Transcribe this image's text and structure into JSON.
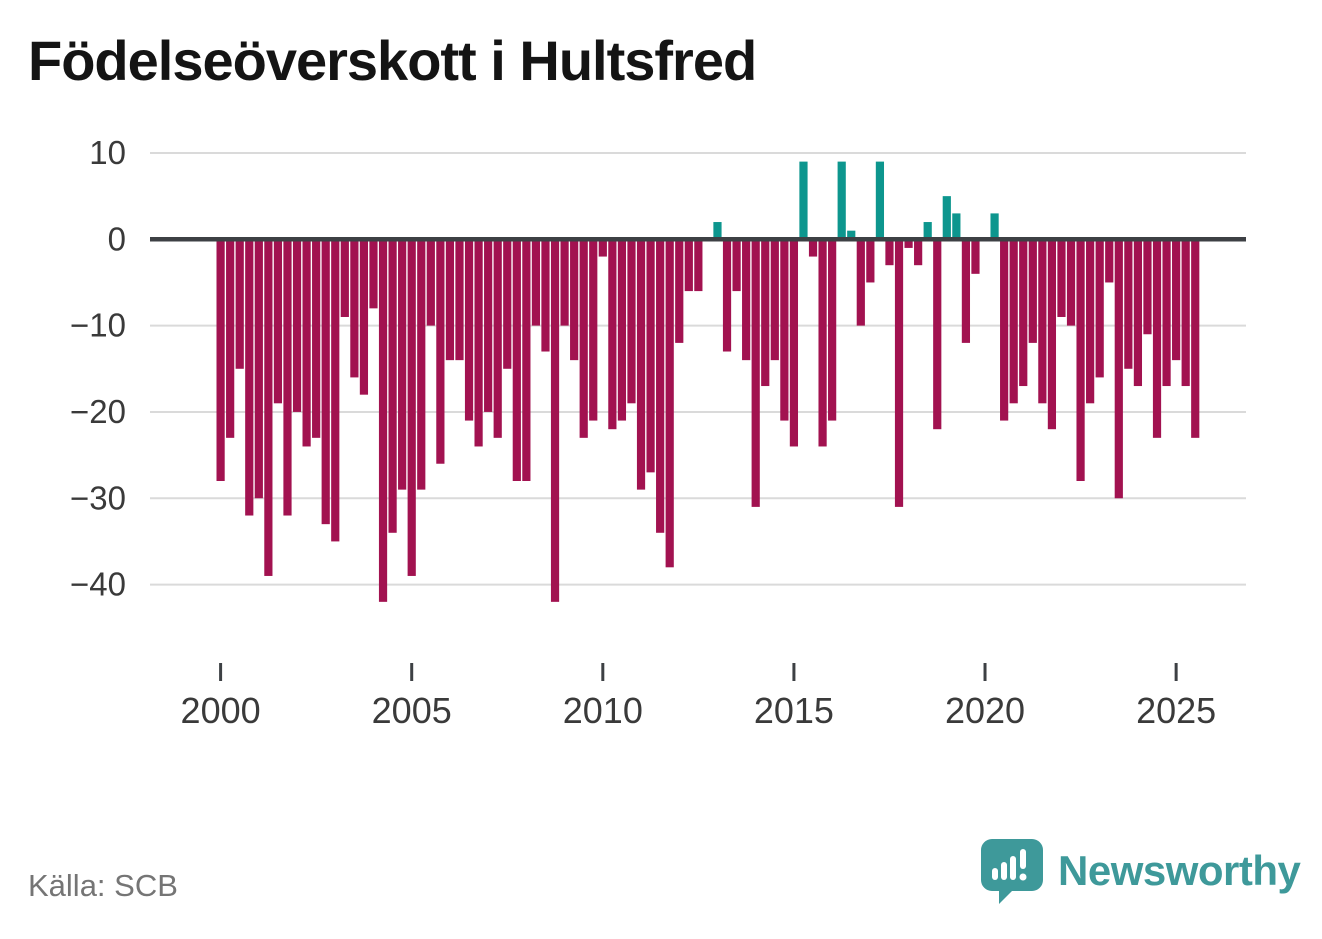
{
  "header": {
    "title": "Födelseöverskott i Hultsfred"
  },
  "footer": {
    "source": "Källa: SCB",
    "brand": "Newsworthy"
  },
  "colors": {
    "negative_bar": "#a21250",
    "positive_bar": "#0d968e",
    "zero_axis": "#3d4044",
    "gridline": "#dadada",
    "tick_text": "#3a3a3a",
    "title_text": "#141414",
    "source_text": "#757575",
    "brand_teal": "#3e999a"
  },
  "chart_data": {
    "type": "bar",
    "title": "Födelseöverskott i Hultsfred",
    "xlabel": "",
    "ylabel": "",
    "frequency": "quarterly",
    "start_period": "2000Q1",
    "end_period": "2025Q3",
    "ylim": [
      -45,
      13
    ],
    "grid": "horizontal",
    "legend": "none",
    "y_ticks": [
      {
        "value": 10,
        "label": "10"
      },
      {
        "value": 0,
        "label": "0"
      },
      {
        "value": -10,
        "label": "−10"
      },
      {
        "value": -20,
        "label": "−20"
      },
      {
        "value": -30,
        "label": "−30"
      },
      {
        "value": -40,
        "label": "−40"
      }
    ],
    "x_ticks": [
      {
        "year": 2000,
        "label": "2000"
      },
      {
        "year": 2005,
        "label": "2005"
      },
      {
        "year": 2010,
        "label": "2010"
      },
      {
        "year": 2015,
        "label": "2015"
      },
      {
        "year": 2020,
        "label": "2020"
      },
      {
        "year": 2025,
        "label": "2025"
      }
    ],
    "values": [
      -28,
      -23,
      -15,
      -32,
      -30,
      -39,
      -19,
      -32,
      -20,
      -24,
      -23,
      -33,
      -35,
      -9,
      -16,
      -18,
      -8,
      -42,
      -34,
      -29,
      -39,
      -29,
      -10,
      -26,
      -14,
      -14,
      -21,
      -24,
      -20,
      -23,
      -15,
      -28,
      -28,
      -10,
      -13,
      -42,
      -10,
      -14,
      -23,
      -21,
      -2,
      -22,
      -21,
      -19,
      -29,
      -27,
      -34,
      -38,
      -12,
      -6,
      -6,
      0,
      2,
      -13,
      -6,
      -14,
      -31,
      -17,
      -14,
      -21,
      -24,
      9,
      -2,
      -24,
      -21,
      9,
      1,
      -10,
      -5,
      9,
      -3,
      -31,
      -1,
      -3,
      2,
      -22,
      5,
      3,
      -12,
      -4,
      0,
      3,
      -21,
      -19,
      -17,
      -12,
      -19,
      -22,
      -9,
      -10,
      -28,
      -19,
      -16,
      -5,
      -30,
      -15,
      -17,
      -11,
      -23,
      -17,
      -14,
      -17,
      -23
    ]
  }
}
